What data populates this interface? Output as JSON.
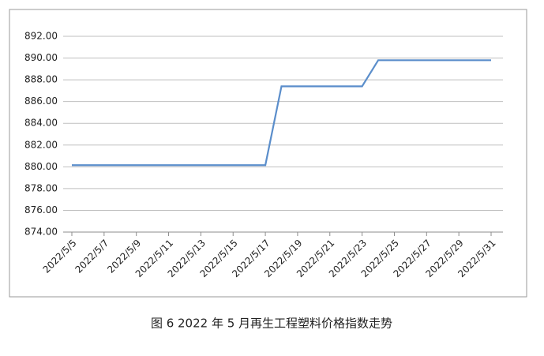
{
  "chart_data": {
    "type": "line",
    "caption": "图 6  2022 年 5 月再生工程塑料价格指数走势",
    "categories": [
      "2022/5/5",
      null,
      "2022/5/7",
      null,
      "2022/5/9",
      null,
      "2022/5/11",
      null,
      "2022/5/13",
      null,
      "2022/5/15",
      null,
      "2022/5/17",
      null,
      "2022/5/19",
      null,
      "2022/5/21",
      null,
      "2022/5/23",
      null,
      "2022/5/25",
      null,
      "2022/5/27",
      null,
      "2022/5/29",
      null,
      "2022/5/31"
    ],
    "values": [
      880.15,
      880.15,
      880.15,
      880.15,
      880.15,
      880.15,
      880.15,
      880.15,
      880.15,
      880.15,
      880.15,
      880.15,
      880.15,
      887.4,
      887.4,
      887.4,
      887.4,
      887.4,
      887.4,
      889.8,
      889.8,
      889.8,
      889.8,
      889.8,
      889.8,
      889.8,
      889.8
    ],
    "color": "#5b8ecb",
    "ylim": [
      874,
      892
    ],
    "yticks": [
      {
        "value": 874,
        "label": "874.00"
      },
      {
        "value": 876,
        "label": "876.00"
      },
      {
        "value": 878,
        "label": "878.00"
      },
      {
        "value": 880,
        "label": "880.00"
      },
      {
        "value": 882,
        "label": "882.00"
      },
      {
        "value": 884,
        "label": "884.00"
      },
      {
        "value": 886,
        "label": "886.00"
      },
      {
        "value": 888,
        "label": "888.00"
      },
      {
        "value": 890,
        "label": "890.00"
      },
      {
        "value": 892,
        "label": "892.00"
      }
    ],
    "grid": true
  }
}
